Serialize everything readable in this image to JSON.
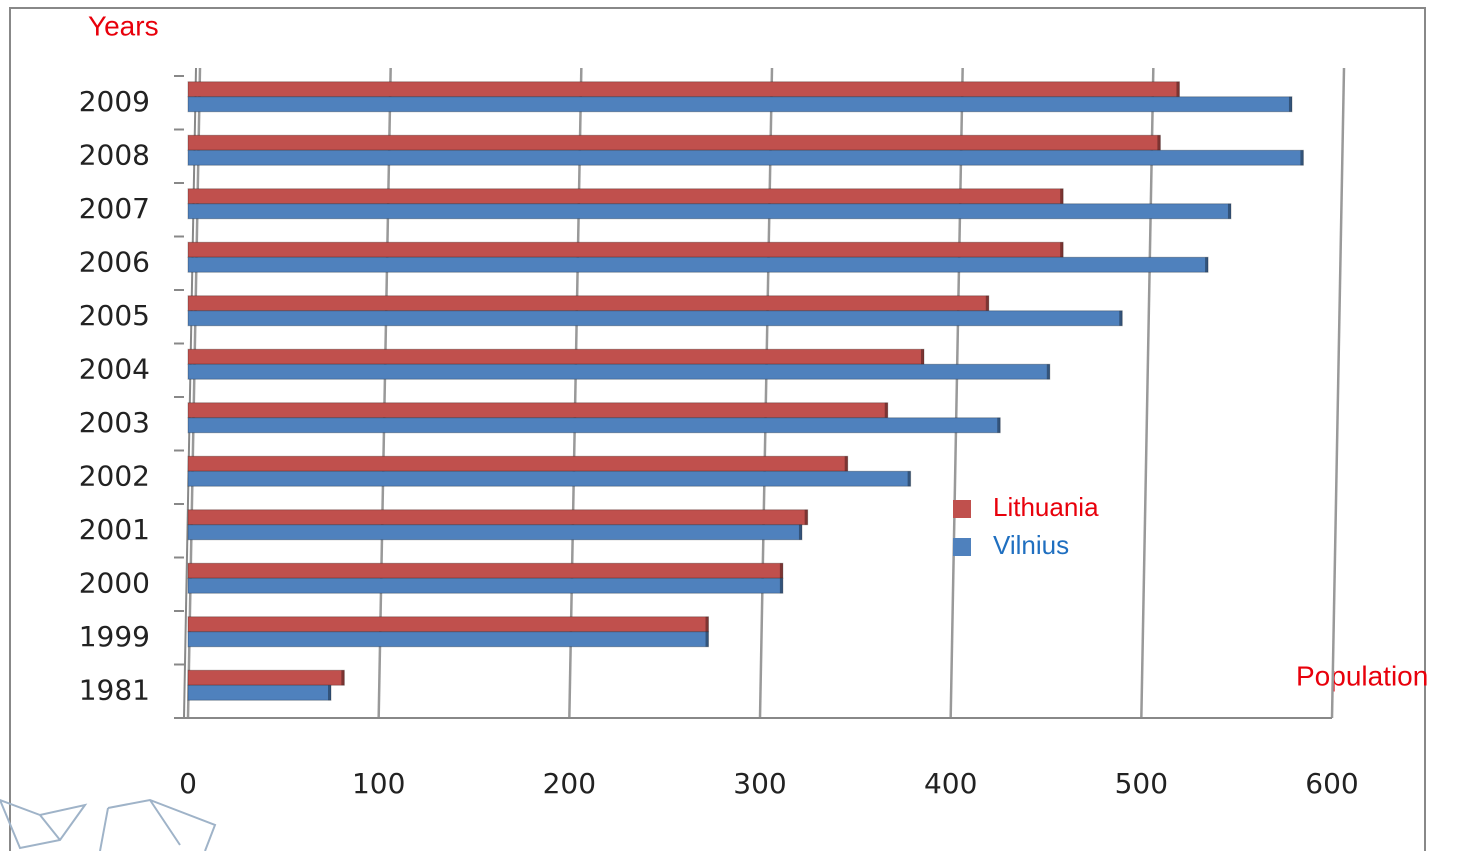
{
  "chart_data": {
    "type": "bar",
    "orientation": "horizontal",
    "y_axis_label": "Years",
    "x_axis_label": "Population",
    "categories": [
      "2009",
      "2008",
      "2007",
      "2006",
      "2005",
      "2004",
      "2003",
      "2002",
      "2001",
      "2000",
      "1999",
      "1981"
    ],
    "series": [
      {
        "name": "Lithuania",
        "color": "#c0504d",
        "values": [
          520,
          510,
          459,
          459,
          420,
          386,
          367,
          346,
          325,
          312,
          273,
          82
        ]
      },
      {
        "name": "Vilnius",
        "color": "#4f81bd",
        "values": [
          579,
          585,
          547,
          535,
          490,
          452,
          426,
          379,
          322,
          312,
          273,
          75
        ]
      }
    ],
    "xlim": [
      0,
      600
    ],
    "xticks": [
      0,
      100,
      200,
      300,
      400,
      500,
      600
    ],
    "grid": true
  }
}
